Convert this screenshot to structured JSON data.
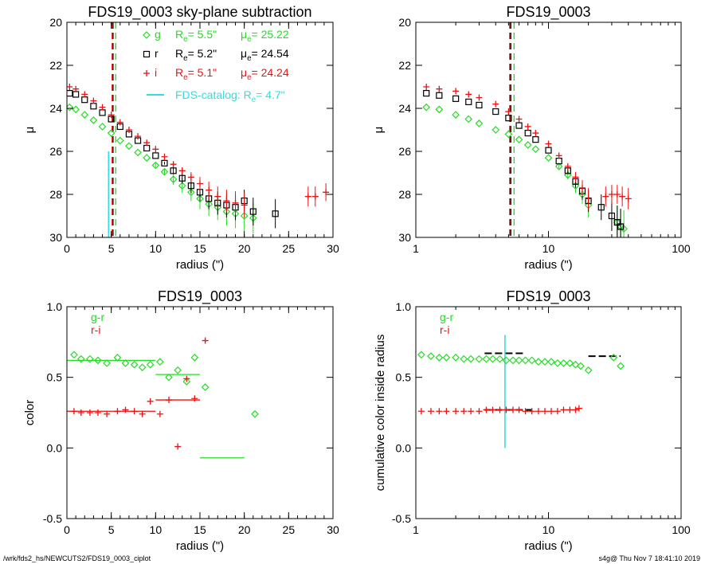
{
  "footer": {
    "left": "/wrk/fds2_hs/NEWCUTS2/FDS19_0003_ciplot",
    "right": "s4g@  Thu Nov  7 18:41:10 2019"
  },
  "colors": {
    "g": "#22dd22",
    "r": "#000000",
    "i": "#ee1111",
    "catalog": "#33dddd"
  },
  "chart_data": [
    {
      "id": "p1",
      "type": "scatter",
      "title": "FDS19_0003 sky-plane subtraction",
      "xlabel": "radius (\")",
      "ylabel": "μ",
      "xlim": [
        0,
        30
      ],
      "ylim": [
        30,
        20
      ],
      "xscale": "linear",
      "xticks": [
        0,
        5,
        10,
        15,
        20,
        25,
        30
      ],
      "yticks": [
        20,
        22,
        24,
        26,
        28,
        30
      ],
      "legend": [
        {
          "band": "g",
          "re_label": "R",
          "re_sub": "e",
          "re_value": "=   5.5\"",
          "mu_label": "μ",
          "mu_sub": "e",
          "mu_value": "= 25.22"
        },
        {
          "band": "r",
          "re_label": "R",
          "re_sub": "e",
          "re_value": "=   5.2\"",
          "mu_label": "μ",
          "mu_sub": "e",
          "mu_value": "= 24.54"
        },
        {
          "band": "i",
          "re_label": "R",
          "re_sub": "e",
          "re_value": "=   5.1\"",
          "mu_label": "μ",
          "mu_sub": "e",
          "mu_value": "= 24.24"
        }
      ],
      "catalog_label": "FDS-catalog: R",
      "catalog_sub": "e",
      "catalog_value": "=   4.7\"",
      "catalog_line": {
        "x": 4.7,
        "y0": 30,
        "y1": 26.0
      },
      "vlines": [
        {
          "band": "g",
          "x": 5.5
        },
        {
          "band": "r",
          "x": 5.2
        },
        {
          "band": "i",
          "x": 5.1
        }
      ],
      "series": [
        {
          "band": "g",
          "marker": "diamond",
          "x": [
            0.3,
            1,
            2,
            3,
            4,
            5,
            6,
            7,
            8,
            9,
            10,
            11,
            12,
            13,
            14,
            15,
            16,
            17,
            18,
            19,
            20,
            21
          ],
          "y": [
            23.95,
            24.05,
            24.3,
            24.55,
            24.85,
            25.15,
            25.5,
            25.75,
            26.05,
            26.3,
            26.65,
            26.95,
            27.3,
            27.6,
            27.9,
            28.2,
            28.45,
            28.6,
            28.8,
            28.9,
            29.0,
            29.1
          ]
        },
        {
          "band": "r",
          "marker": "square",
          "x": [
            0.3,
            1,
            2,
            3,
            4,
            5,
            6,
            7,
            8,
            9,
            10,
            11,
            12,
            13,
            14,
            15,
            16,
            17,
            18,
            19,
            20,
            21,
            23.5
          ],
          "y": [
            23.3,
            23.35,
            23.6,
            23.9,
            24.2,
            24.5,
            24.85,
            25.2,
            25.5,
            25.85,
            26.2,
            26.55,
            26.9,
            27.25,
            27.6,
            27.9,
            28.2,
            28.4,
            28.5,
            28.6,
            28.3,
            28.8,
            28.9
          ]
        },
        {
          "band": "i",
          "marker": "plus",
          "x": [
            0.3,
            1,
            2,
            3,
            4,
            5,
            6,
            7,
            8,
            9,
            10,
            11,
            12,
            13,
            14,
            15,
            16,
            17,
            18,
            19,
            20,
            27.2,
            28,
            29.2
          ],
          "y": [
            23.0,
            23.1,
            23.35,
            23.65,
            23.95,
            24.3,
            24.65,
            25.0,
            25.3,
            25.6,
            25.9,
            26.25,
            26.6,
            26.9,
            27.2,
            27.5,
            27.8,
            28.1,
            28.3,
            28.4,
            28.5,
            28.1,
            28.1,
            27.9
          ]
        }
      ]
    },
    {
      "id": "p2",
      "type": "scatter",
      "title": "FDS19_0003",
      "xlabel": "radius (\")",
      "ylabel": "μ",
      "xlim": [
        1,
        100
      ],
      "ylim": [
        30,
        20
      ],
      "xscale": "log",
      "xticks": [
        1,
        10,
        100
      ],
      "yticks": [
        20,
        22,
        24,
        26,
        28,
        30
      ],
      "vlines": [
        {
          "band": "g",
          "x": 5.5
        },
        {
          "band": "r",
          "x": 5.2
        },
        {
          "band": "i",
          "x": 5.1
        }
      ],
      "series": [
        {
          "band": "g",
          "marker": "diamond",
          "x": [
            1.2,
            1.5,
            2,
            2.5,
            3,
            4,
            5,
            6,
            7,
            8,
            10,
            12,
            14,
            16,
            18,
            20,
            33,
            35,
            37
          ],
          "y": [
            23.95,
            24.05,
            24.3,
            24.5,
            24.7,
            25.0,
            25.2,
            25.45,
            25.7,
            25.9,
            26.3,
            26.7,
            27.1,
            27.6,
            28.0,
            28.5,
            29.3,
            29.5,
            29.6
          ]
        },
        {
          "band": "r",
          "marker": "square",
          "x": [
            1.2,
            1.5,
            2,
            2.5,
            3,
            4,
            5,
            6,
            7,
            8,
            10,
            12,
            14,
            16,
            18,
            20,
            25,
            30,
            33,
            35
          ],
          "y": [
            23.3,
            23.4,
            23.55,
            23.7,
            23.85,
            24.15,
            24.45,
            24.8,
            25.15,
            25.45,
            25.95,
            26.45,
            26.9,
            27.4,
            27.85,
            28.3,
            28.6,
            29.0,
            29.3,
            29.5
          ]
        },
        {
          "band": "i",
          "marker": "plus",
          "x": [
            1.2,
            1.5,
            2,
            2.5,
            3,
            4,
            5,
            6,
            7,
            8,
            10,
            12,
            14,
            16,
            18,
            20,
            27,
            30,
            33,
            36,
            40
          ],
          "y": [
            23.0,
            23.1,
            23.2,
            23.35,
            23.5,
            23.8,
            24.15,
            24.5,
            24.85,
            25.15,
            25.65,
            26.2,
            26.7,
            27.2,
            27.7,
            28.2,
            28.1,
            28.0,
            28.0,
            28.1,
            28.2
          ]
        }
      ]
    },
    {
      "id": "p3",
      "type": "scatter",
      "title": "FDS19_0003",
      "xlabel": "radius (\")",
      "ylabel": "color",
      "xlim": [
        0,
        30
      ],
      "ylim": [
        -0.5,
        1.0
      ],
      "xscale": "linear",
      "xticks": [
        0,
        5,
        10,
        15,
        20,
        25,
        30
      ],
      "yticks": [
        -0.5,
        0.0,
        0.5,
        1.0
      ],
      "legend_text": [
        "g-r",
        "r-i"
      ],
      "series": [
        {
          "band": "g",
          "name": "g-r",
          "marker": "diamond",
          "x": [
            0.8,
            1.6,
            2.6,
            3.5,
            4.5,
            5.7,
            6.6,
            7.6,
            8.5,
            9.4,
            10.5,
            11.5,
            12.5,
            13.5,
            14.4,
            15.6,
            21.2
          ],
          "y": [
            0.66,
            0.63,
            0.63,
            0.62,
            0.6,
            0.64,
            0.6,
            0.59,
            0.57,
            0.59,
            0.61,
            0.5,
            0.55,
            0.47,
            0.64,
            0.43,
            0.24
          ]
        },
        {
          "band": "i",
          "name": "r-i",
          "marker": "plus",
          "x": [
            0.8,
            1.6,
            2.6,
            3.5,
            4.5,
            5.7,
            6.6,
            7.6,
            8.5,
            9.4,
            10.5,
            11.5,
            12.5,
            13.5,
            14.4,
            15.6
          ],
          "y": [
            0.26,
            0.25,
            0.25,
            0.25,
            0.24,
            0.26,
            0.27,
            0.26,
            0.24,
            0.33,
            0.24,
            0.34,
            0.01,
            0.49,
            0.35,
            0.76
          ]
        }
      ],
      "hlines": [
        {
          "band": "g",
          "x0": 0,
          "x1": 10,
          "y": 0.62
        },
        {
          "band": "g",
          "x0": 10,
          "x1": 15,
          "y": 0.52
        },
        {
          "band": "g",
          "x0": 15,
          "x1": 20,
          "y": -0.07
        },
        {
          "band": "i",
          "x0": 0,
          "x1": 10,
          "y": 0.26
        },
        {
          "band": "i",
          "x0": 10,
          "x1": 15,
          "y": 0.34
        }
      ]
    },
    {
      "id": "p4",
      "type": "scatter",
      "title": "FDS19_0003",
      "xlabel": "radius (\")",
      "ylabel": "cumulative color inside radius",
      "xlim": [
        1,
        100
      ],
      "ylim": [
        -0.5,
        1.0
      ],
      "xscale": "log",
      "xticks": [
        1,
        10,
        100
      ],
      "yticks": [
        -0.5,
        0.0,
        0.5,
        1.0
      ],
      "legend_text": [
        "g-r",
        "r-i"
      ],
      "catalog_line": {
        "x": 4.7,
        "y0": 0.0,
        "y1": 0.8
      },
      "series": [
        {
          "band": "g",
          "name": "g-r",
          "marker": "diamond",
          "x": [
            1.1,
            1.3,
            1.5,
            1.7,
            2.0,
            2.3,
            2.6,
            3.0,
            3.4,
            3.8,
            4.3,
            4.8,
            5.4,
            6.0,
            6.7,
            7.5,
            8.4,
            9.4,
            10.5,
            11.7,
            13.0,
            14.5,
            16,
            17.5,
            20,
            31,
            35
          ],
          "y": [
            0.66,
            0.65,
            0.64,
            0.64,
            0.64,
            0.63,
            0.63,
            0.63,
            0.63,
            0.63,
            0.63,
            0.62,
            0.62,
            0.62,
            0.62,
            0.62,
            0.61,
            0.61,
            0.61,
            0.6,
            0.6,
            0.6,
            0.59,
            0.58,
            0.55,
            0.64,
            0.58
          ]
        },
        {
          "band": "i",
          "name": "r-i",
          "marker": "plus",
          "x": [
            1.1,
            1.3,
            1.5,
            1.7,
            2.0,
            2.3,
            2.6,
            3.0,
            3.4,
            3.8,
            4.3,
            4.8,
            5.4,
            6.0,
            6.7,
            7.5,
            8.4,
            9.4,
            10.5,
            11.7,
            13.0,
            14.5,
            16,
            17
          ],
          "y": [
            0.26,
            0.26,
            0.26,
            0.26,
            0.26,
            0.26,
            0.26,
            0.26,
            0.27,
            0.27,
            0.27,
            0.27,
            0.27,
            0.27,
            0.26,
            0.26,
            0.26,
            0.26,
            0.26,
            0.26,
            0.27,
            0.27,
            0.27,
            0.28
          ]
        }
      ],
      "hsegs": [
        {
          "band": "r",
          "x0": 3.3,
          "x1": 6.5,
          "y": 0.67
        },
        {
          "band": "r",
          "x0": 3.3,
          "x1": 7.5,
          "y": 0.27
        },
        {
          "band": "r",
          "x0": 20,
          "x1": 35,
          "y": 0.65
        }
      ]
    }
  ]
}
